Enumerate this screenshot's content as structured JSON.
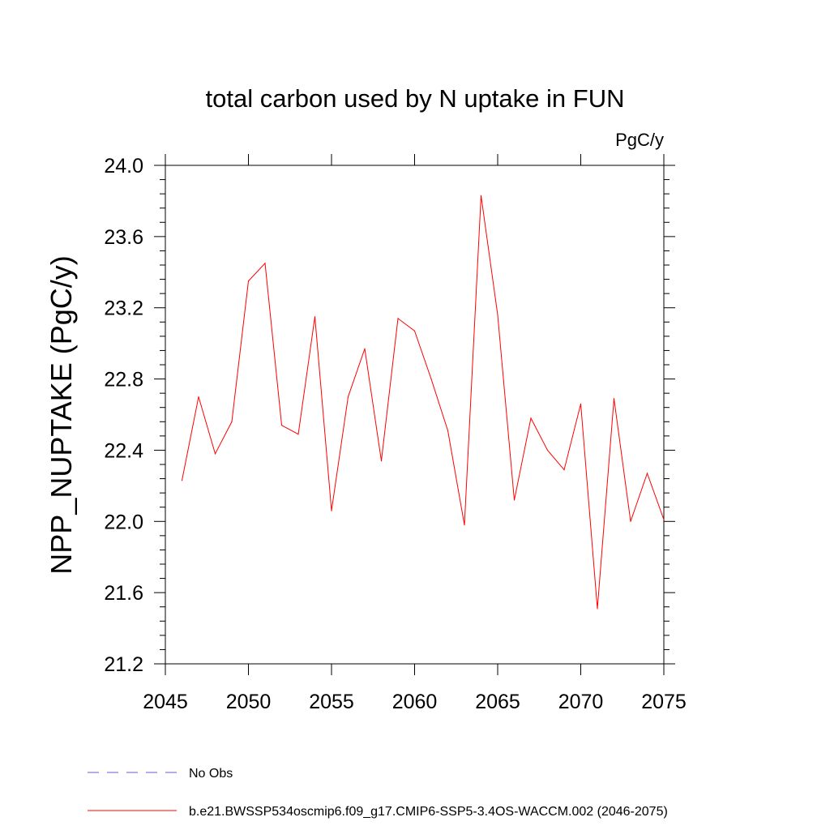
{
  "chart_data": {
    "type": "line",
    "title": "total carbon used by N uptake in FUN",
    "units_label": "PgC/y",
    "xlabel": "",
    "ylabel": "NPP_NUPTAKE  (PgC/y)",
    "xlim": [
      2045,
      2075
    ],
    "ylim": [
      21.2,
      24.0
    ],
    "x_ticks": [
      2045,
      2050,
      2055,
      2060,
      2065,
      2070,
      2075
    ],
    "y_ticks": [
      21.2,
      21.6,
      22.0,
      22.4,
      22.8,
      23.2,
      23.6,
      24.0
    ],
    "x_tick_labels": [
      "2045",
      "2050",
      "2055",
      "2060",
      "2065",
      "2070",
      "2075"
    ],
    "y_tick_labels": [
      "21.2",
      "21.6",
      "22.0",
      "22.4",
      "22.8",
      "23.2",
      "23.6",
      "24.0"
    ],
    "series": [
      {
        "name": "b.e21.BWSSP534oscmip6.f09_g17.CMIP6-SSP5-3.4OS-WACCM.002 (2046-2075)",
        "color": "#ff0000",
        "x": [
          2046,
          2047,
          2048,
          2049,
          2050,
          2051,
          2052,
          2053,
          2054,
          2055,
          2056,
          2057,
          2058,
          2059,
          2060,
          2061,
          2062,
          2063,
          2064,
          2065,
          2066,
          2067,
          2068,
          2069,
          2070,
          2071,
          2072,
          2073,
          2074,
          2075
        ],
        "values": [
          22.23,
          22.7,
          22.38,
          22.56,
          23.35,
          23.45,
          22.54,
          22.49,
          23.15,
          22.06,
          22.7,
          22.97,
          22.34,
          23.14,
          23.07,
          22.8,
          22.51,
          21.98,
          23.83,
          23.16,
          22.12,
          22.58,
          22.4,
          22.29,
          22.66,
          21.51,
          22.69,
          22.0,
          22.27,
          22.01
        ]
      }
    ],
    "legend": {
      "placement": "bottom-left",
      "entries": [
        {
          "label": "No Obs",
          "color": "#6a5acd",
          "style": "dashed"
        },
        {
          "label": "b.e21.BWSSP534oscmip6.f09_g17.CMIP6-SSP5-3.4OS-WACCM.002 (2046-2075)",
          "color": "#ff0000",
          "style": "solid"
        }
      ]
    }
  }
}
